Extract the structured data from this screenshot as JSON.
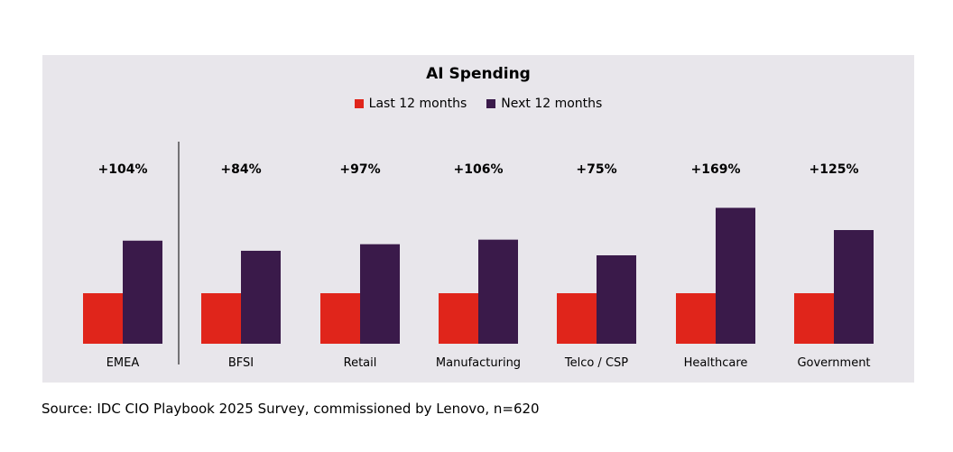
{
  "chart_data": {
    "type": "bar",
    "title": "AI Spending",
    "categories": [
      "EMEA",
      "BFSI",
      "Retail",
      "Manufacturing",
      "Telco / CSP",
      "Healthcare",
      "Government"
    ],
    "series": [
      {
        "name": "Last 12 months",
        "values": [
          100,
          100,
          100,
          100,
          100,
          100,
          100
        ],
        "color": "#e0251b"
      },
      {
        "name": "Next 12 months",
        "values": [
          204,
          184,
          197,
          206,
          175,
          269,
          225
        ],
        "color": "#3a1a4a"
      }
    ],
    "annotations": [
      "+104%",
      "+84%",
      "+97%",
      "+106%",
      "+75%",
      "+169%",
      "+125%"
    ],
    "legend_position": "top-center",
    "grid": false
  },
  "source": "Source: IDC CIO Playbook 2025 Survey, commissioned by Lenovo, n=620"
}
